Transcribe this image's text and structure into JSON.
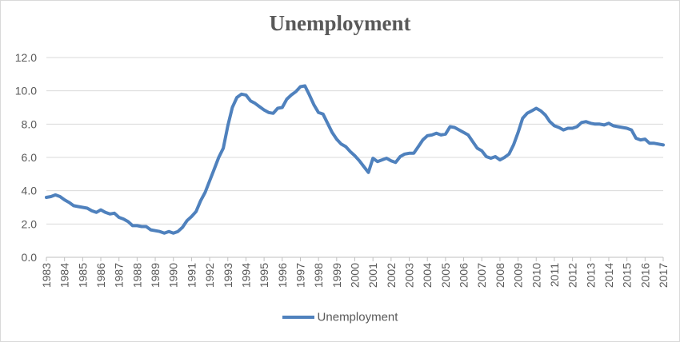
{
  "chart_data": {
    "type": "line",
    "title": "Unemployment",
    "xlabel": "",
    "ylabel": "",
    "ylim": [
      0,
      12
    ],
    "yticks": [
      "0.0",
      "2.0",
      "4.0",
      "6.0",
      "8.0",
      "10.0",
      "12.0"
    ],
    "xticks": [
      "1983",
      "1984",
      "1985",
      "1986",
      "1987",
      "1988",
      "1989",
      "1990",
      "1991",
      "1992",
      "1993",
      "1994",
      "1995",
      "1996",
      "1997",
      "1998",
      "1999",
      "2000",
      "2001",
      "2002",
      "2003",
      "2004",
      "2005",
      "2006",
      "2007",
      "2008",
      "2009",
      "2010",
      "2011",
      "2012",
      "2013",
      "2014",
      "2015",
      "2016",
      "2017"
    ],
    "grid": true,
    "legend": "bottom",
    "series": [
      {
        "name": "Unemployment",
        "color": "#4f81bd",
        "x": [
          1983.0,
          1983.25,
          1983.5,
          1983.75,
          1984.0,
          1984.25,
          1984.5,
          1984.75,
          1985.0,
          1985.25,
          1985.5,
          1985.75,
          1986.0,
          1986.25,
          1986.5,
          1986.75,
          1987.0,
          1987.25,
          1987.5,
          1987.75,
          1988.0,
          1988.25,
          1988.5,
          1988.75,
          1989.0,
          1989.25,
          1989.5,
          1989.75,
          1990.0,
          1990.25,
          1990.5,
          1990.75,
          1991.0,
          1991.25,
          1991.5,
          1991.75,
          1992.0,
          1992.25,
          1992.5,
          1992.75,
          1993.0,
          1993.25,
          1993.5,
          1993.75,
          1994.0,
          1994.25,
          1994.5,
          1994.75,
          1995.0,
          1995.25,
          1995.5,
          1995.75,
          1996.0,
          1996.25,
          1996.5,
          1996.75,
          1997.0,
          1997.25,
          1997.5,
          1997.75,
          1998.0,
          1998.25,
          1998.5,
          1998.75,
          1999.0,
          1999.25,
          1999.5,
          1999.75,
          2000.0,
          2000.25,
          2000.5,
          2000.75,
          2001.0,
          2001.25,
          2001.5,
          2001.75,
          2002.0,
          2002.25,
          2002.5,
          2002.75,
          2003.0,
          2003.25,
          2003.5,
          2003.75,
          2004.0,
          2004.25,
          2004.5,
          2004.75,
          2005.0,
          2005.25,
          2005.5,
          2005.75,
          2006.0,
          2006.25,
          2006.5,
          2006.75,
          2007.0,
          2007.25,
          2007.5,
          2007.75,
          2008.0,
          2008.25,
          2008.5,
          2008.75,
          2009.0,
          2009.25,
          2009.5,
          2009.75,
          2010.0,
          2010.25,
          2010.5,
          2010.75,
          2011.0,
          2011.25,
          2011.5,
          2011.75,
          2012.0,
          2012.25,
          2012.5,
          2012.75,
          2013.0,
          2013.25,
          2013.5,
          2013.75,
          2014.0,
          2014.25,
          2014.5,
          2014.75,
          2015.0,
          2015.25,
          2015.5,
          2015.75,
          2016.0,
          2016.25,
          2016.5,
          2016.75,
          2017.0
        ],
        "values": [
          3.6,
          3.65,
          3.75,
          3.65,
          3.45,
          3.3,
          3.1,
          3.05,
          3.0,
          2.95,
          2.8,
          2.7,
          2.85,
          2.7,
          2.6,
          2.65,
          2.4,
          2.3,
          2.15,
          1.9,
          1.9,
          1.85,
          1.85,
          1.65,
          1.6,
          1.55,
          1.45,
          1.55,
          1.45,
          1.55,
          1.8,
          2.2,
          2.45,
          2.75,
          3.4,
          3.9,
          4.6,
          5.3,
          6.0,
          6.55,
          7.9,
          9.0,
          9.6,
          9.8,
          9.75,
          9.4,
          9.25,
          9.05,
          8.85,
          8.7,
          8.65,
          8.95,
          9.0,
          9.5,
          9.75,
          9.95,
          10.25,
          10.3,
          9.75,
          9.15,
          8.7,
          8.6,
          8.05,
          7.5,
          7.1,
          6.8,
          6.65,
          6.35,
          6.1,
          5.8,
          5.45,
          5.1,
          5.95,
          5.75,
          5.85,
          5.95,
          5.8,
          5.7,
          6.05,
          6.2,
          6.25,
          6.25,
          6.65,
          7.05,
          7.3,
          7.35,
          7.45,
          7.35,
          7.4,
          7.85,
          7.8,
          7.65,
          7.5,
          7.35,
          6.95,
          6.55,
          6.4,
          6.05,
          5.95,
          6.05,
          5.85,
          6.0,
          6.2,
          6.75,
          7.5,
          8.35,
          8.65,
          8.8,
          8.95,
          8.8,
          8.55,
          8.15,
          7.9,
          7.8,
          7.65,
          7.75,
          7.75,
          7.85,
          8.1,
          8.15,
          8.05,
          8.0,
          8.0,
          7.95,
          8.05,
          7.9,
          7.85,
          7.8,
          7.75,
          7.65,
          7.15,
          7.05,
          7.1,
          6.85,
          6.85,
          6.8,
          6.75
        ]
      }
    ]
  }
}
